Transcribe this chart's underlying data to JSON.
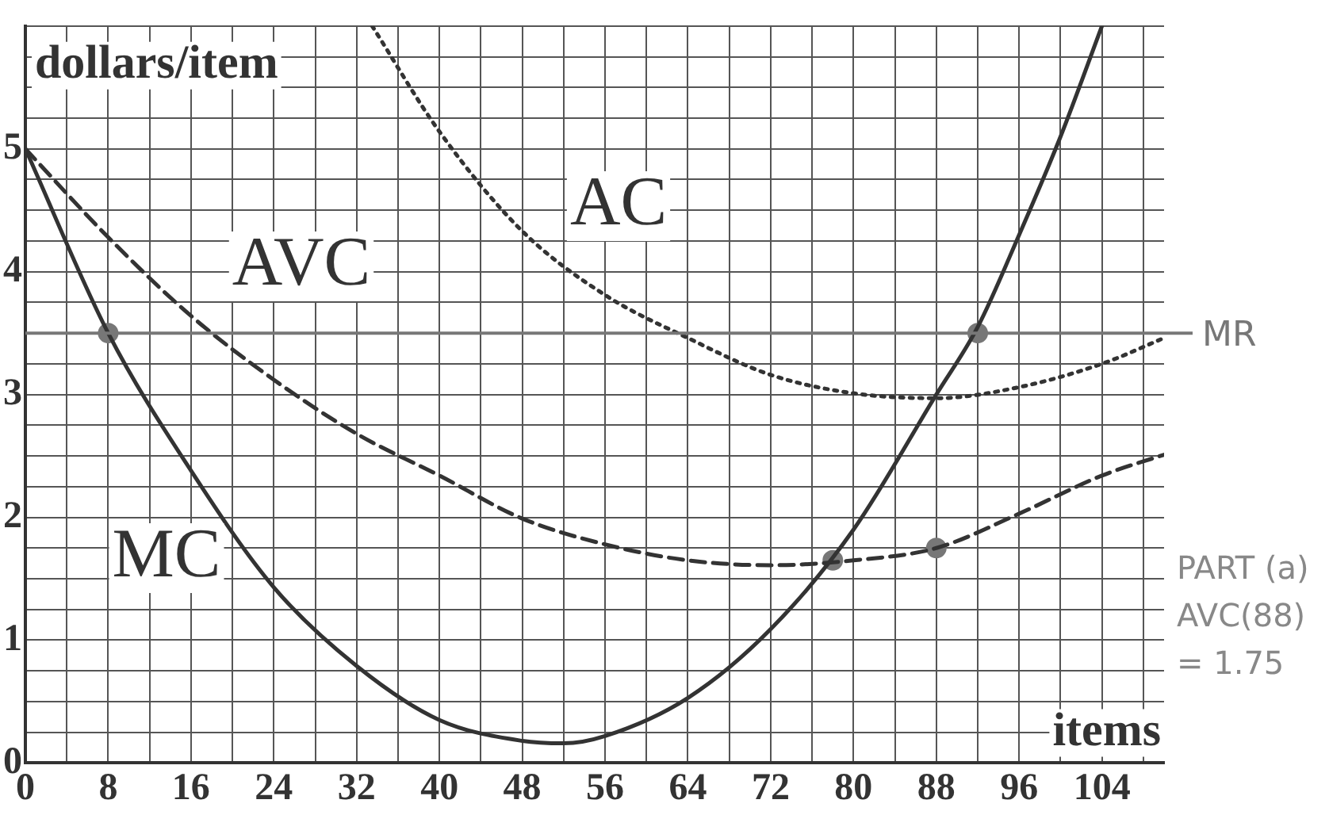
{
  "chart_data": {
    "type": "line",
    "xlabel": "items",
    "ylabel": "dollars/item",
    "xlim": [
      0,
      110
    ],
    "ylim": [
      0,
      6
    ],
    "xticks": [
      0,
      {
        "value": 4,
        "label": null
      },
      8,
      {
        "value": 12,
        "label": null
      },
      16,
      {
        "value": 20,
        "label": null
      },
      24,
      {
        "value": 28,
        "label": null
      },
      32,
      {
        "value": 36,
        "label": null
      },
      40,
      {
        "value": 44,
        "label": null
      },
      48,
      {
        "value": 52,
        "label": null
      },
      56,
      {
        "value": 60,
        "label": null
      },
      64,
      {
        "value": 68,
        "label": null
      },
      72,
      {
        "value": 76,
        "label": null
      },
      80,
      {
        "value": 84,
        "label": null
      },
      88,
      {
        "value": 92,
        "label": null
      },
      96,
      {
        "value": 100,
        "label": null
      },
      104,
      {
        "value": 108,
        "label": null
      }
    ],
    "yticks": [
      0,
      {
        "value": 0.25,
        "label": null
      },
      {
        "value": 0.5,
        "label": null
      },
      {
        "value": 0.75,
        "label": null
      },
      1,
      {
        "value": 1.25,
        "label": null
      },
      {
        "value": 1.5,
        "label": null
      },
      {
        "value": 1.75,
        "label": null
      },
      2,
      {
        "value": 2.25,
        "label": null
      },
      {
        "value": 2.5,
        "label": null
      },
      {
        "value": 2.75,
        "label": null
      },
      3,
      {
        "value": 3.25,
        "label": null
      },
      {
        "value": 3.5,
        "label": null
      },
      {
        "value": 3.75,
        "label": null
      },
      4,
      {
        "value": 4.25,
        "label": null
      },
      {
        "value": 4.5,
        "label": null
      },
      {
        "value": 4.75,
        "label": null
      },
      5,
      {
        "value": 5.25,
        "label": null
      },
      {
        "value": 5.5,
        "label": null
      },
      {
        "value": 5.75,
        "label": null
      },
      {
        "value": 6,
        "label": null
      }
    ],
    "grid": true,
    "legend": false,
    "series": [
      {
        "name": "MC",
        "color": "#333333",
        "line_style": "solid",
        "x": [
          0,
          8,
          16,
          24,
          32,
          40,
          48,
          52,
          56,
          64,
          72,
          80,
          88,
          92,
          96,
          100,
          104
        ],
        "values": [
          5,
          3.5,
          2.38,
          1.43,
          0.79,
          0.35,
          0.18,
          0.16,
          0.22,
          0.53,
          1.09,
          1.9,
          3.0,
          3.55,
          4.3,
          5.1,
          6.0
        ]
      },
      {
        "name": "AVC",
        "color": "#333333",
        "line_style": "dashed",
        "x": [
          0,
          8,
          16,
          24,
          32,
          40,
          48,
          56,
          64,
          72,
          80,
          88,
          96,
          104,
          110
        ],
        "values": [
          5,
          4.28,
          3.64,
          3.12,
          2.68,
          2.34,
          1.99,
          1.78,
          1.65,
          1.61,
          1.65,
          1.75,
          2.03,
          2.34,
          2.51
        ]
      },
      {
        "name": "AC",
        "color": "#333333",
        "line_style": "dotted",
        "x": [
          33.5,
          40,
          48,
          56,
          64,
          72,
          80,
          88,
          96,
          104,
          110
        ],
        "values": [
          6.0,
          5.14,
          4.33,
          3.81,
          3.46,
          3.16,
          3.01,
          2.97,
          3.06,
          3.25,
          3.46
        ]
      },
      {
        "type": "scatter",
        "color": "#777777",
        "marker": "circle",
        "x": [
          8,
          92,
          88,
          78
        ],
        "values": [
          3.5,
          3.5,
          1.75,
          1.65
        ]
      }
    ],
    "ref_lines": [
      {
        "axis": "y",
        "value": 3.5,
        "label": "MR",
        "color": "#777777"
      }
    ],
    "annotations": [
      "PART (a)",
      "AVC(88)",
      "= 1.75"
    ]
  }
}
